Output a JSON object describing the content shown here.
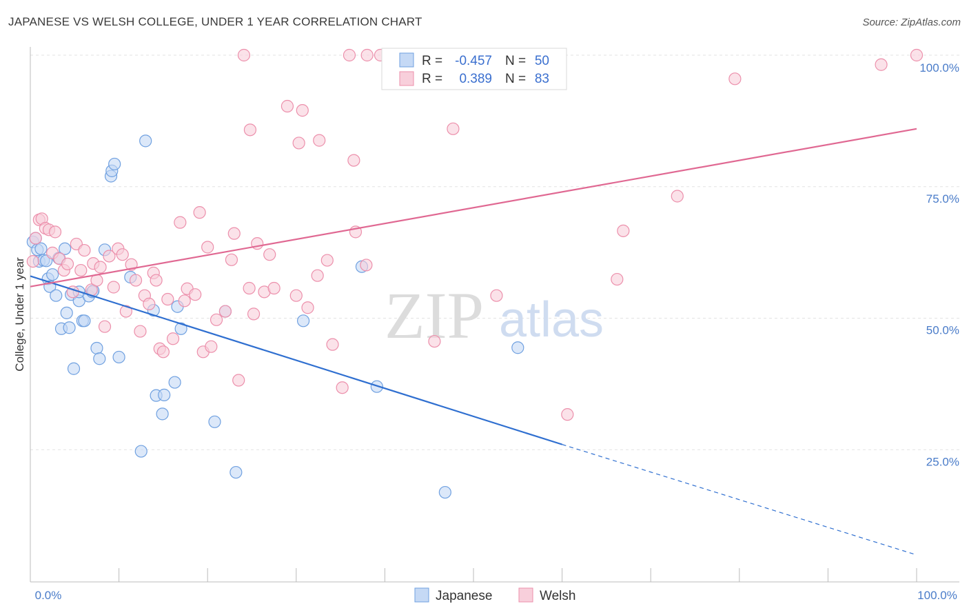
{
  "title": "JAPANESE VS WELSH COLLEGE, UNDER 1 YEAR CORRELATION CHART",
  "source": "Source: ZipAtlas.com",
  "watermark": {
    "zip": "ZIP",
    "atlas": "atlas"
  },
  "chart_data": {
    "type": "scatter",
    "ylabel": "College, Under 1 year",
    "xlim": [
      0,
      100
    ],
    "ylim": [
      0,
      105
    ],
    "x_tick_labels": [
      "0.0%",
      "100.0%"
    ],
    "y_tick_labels": [
      "25.0%",
      "50.0%",
      "75.0%",
      "100.0%"
    ],
    "y_ticks": [
      25,
      50,
      75,
      100
    ],
    "legend": {
      "r_label": "R =",
      "n_label": "N =",
      "entries": [
        {
          "name": "Japanese",
          "r": "-0.457",
          "n": "50"
        },
        {
          "name": "Welsh",
          "r": "0.389",
          "n": "83"
        }
      ]
    },
    "series": [
      {
        "name": "Japanese",
        "color": "#6fa0e0",
        "fill": "#c5d9f5",
        "line_color": "#2f6fd0",
        "trend": {
          "x0": 0,
          "y0": 58,
          "x1": 60,
          "y1": 26,
          "dash_x1": 100,
          "dash_y1": 5
        },
        "points": [
          [
            0.3,
            64.5
          ],
          [
            0.6,
            65.2
          ],
          [
            0.8,
            63.0
          ],
          [
            1.0,
            60.8
          ],
          [
            1.2,
            63.2
          ],
          [
            1.5,
            61.0
          ],
          [
            1.8,
            60.9
          ],
          [
            2.0,
            57.5
          ],
          [
            2.2,
            56.0
          ],
          [
            2.5,
            58.3
          ],
          [
            2.9,
            54.3
          ],
          [
            3.2,
            61.4
          ],
          [
            3.5,
            48.0
          ],
          [
            3.9,
            63.2
          ],
          [
            4.1,
            51.0
          ],
          [
            4.4,
            48.2
          ],
          [
            4.6,
            54.5
          ],
          [
            4.9,
            40.4
          ],
          [
            5.5,
            53.3
          ],
          [
            5.5,
            55.0
          ],
          [
            5.9,
            49.5
          ],
          [
            6.1,
            49.5
          ],
          [
            6.6,
            54.2
          ],
          [
            7.0,
            55.0
          ],
          [
            7.1,
            55.2
          ],
          [
            7.5,
            44.3
          ],
          [
            7.8,
            42.3
          ],
          [
            8.4,
            63.0
          ],
          [
            9.1,
            77.0
          ],
          [
            9.2,
            78.0
          ],
          [
            9.5,
            79.3
          ],
          [
            10.0,
            42.6
          ],
          [
            11.3,
            57.8
          ],
          [
            12.5,
            24.7
          ],
          [
            13.0,
            83.7
          ],
          [
            13.9,
            51.5
          ],
          [
            14.2,
            35.3
          ],
          [
            15.1,
            35.4
          ],
          [
            14.9,
            31.8
          ],
          [
            16.3,
            37.8
          ],
          [
            16.6,
            52.2
          ],
          [
            17.0,
            48.0
          ],
          [
            20.8,
            30.3
          ],
          [
            22.0,
            51.3
          ],
          [
            23.2,
            20.7
          ],
          [
            30.8,
            49.5
          ],
          [
            37.4,
            59.8
          ],
          [
            39.1,
            37.0
          ],
          [
            46.8,
            16.9
          ],
          [
            55.0,
            44.4
          ]
        ]
      },
      {
        "name": "Welsh",
        "color": "#ec8fab",
        "fill": "#f8cfdb",
        "line_color": "#e06892",
        "trend": {
          "x0": 0,
          "y0": 56,
          "x1": 100,
          "y1": 86
        },
        "points": [
          [
            0.3,
            60.8
          ],
          [
            0.6,
            65.2
          ],
          [
            1.0,
            68.7
          ],
          [
            1.3,
            68.9
          ],
          [
            1.7,
            67.1
          ],
          [
            2.1,
            66.8
          ],
          [
            2.5,
            62.4
          ],
          [
            2.8,
            66.4
          ],
          [
            3.3,
            61.3
          ],
          [
            3.8,
            59.1
          ],
          [
            4.2,
            60.3
          ],
          [
            4.8,
            55.0
          ],
          [
            5.2,
            64.1
          ],
          [
            5.7,
            59.1
          ],
          [
            6.1,
            62.9
          ],
          [
            6.9,
            55.4
          ],
          [
            7.1,
            60.4
          ],
          [
            7.5,
            57.2
          ],
          [
            7.9,
            59.7
          ],
          [
            8.4,
            48.4
          ],
          [
            8.9,
            61.8
          ],
          [
            9.4,
            55.9
          ],
          [
            9.9,
            63.2
          ],
          [
            10.4,
            62.1
          ],
          [
            10.8,
            51.3
          ],
          [
            11.4,
            60.2
          ],
          [
            11.9,
            57.2
          ],
          [
            12.4,
            47.5
          ],
          [
            12.9,
            54.3
          ],
          [
            13.4,
            52.7
          ],
          [
            13.9,
            58.6
          ],
          [
            14.2,
            57.2
          ],
          [
            14.6,
            44.2
          ],
          [
            15.0,
            43.6
          ],
          [
            15.5,
            53.6
          ],
          [
            16.1,
            46.1
          ],
          [
            16.9,
            68.2
          ],
          [
            17.4,
            53.3
          ],
          [
            17.7,
            55.6
          ],
          [
            18.6,
            54.5
          ],
          [
            19.1,
            70.1
          ],
          [
            19.5,
            43.6
          ],
          [
            20.0,
            63.5
          ],
          [
            20.4,
            44.6
          ],
          [
            21.0,
            49.7
          ],
          [
            22.0,
            51.3
          ],
          [
            22.7,
            61.1
          ],
          [
            23.0,
            66.1
          ],
          [
            23.5,
            38.2
          ],
          [
            24.7,
            55.7
          ],
          [
            24.8,
            85.8
          ],
          [
            25.2,
            50.8
          ],
          [
            25.6,
            64.2
          ],
          [
            26.4,
            55.0
          ],
          [
            27.0,
            62.1
          ],
          [
            27.5,
            55.7
          ],
          [
            29.0,
            90.3
          ],
          [
            30.0,
            54.3
          ],
          [
            30.3,
            83.3
          ],
          [
            30.7,
            89.5
          ],
          [
            31.3,
            52.0
          ],
          [
            32.4,
            58.1
          ],
          [
            32.6,
            83.8
          ],
          [
            33.5,
            61.0
          ],
          [
            34.1,
            45.0
          ],
          [
            35.2,
            36.8
          ],
          [
            36.5,
            80.0
          ],
          [
            36.7,
            66.4
          ],
          [
            37.9,
            60.1
          ],
          [
            39.5,
            100.0
          ],
          [
            45.6,
            45.6
          ],
          [
            47.7,
            86.0
          ],
          [
            52.6,
            54.3
          ],
          [
            60.6,
            31.7
          ],
          [
            66.2,
            57.4
          ],
          [
            66.9,
            66.6
          ],
          [
            73.0,
            73.2
          ],
          [
            79.5,
            95.5
          ],
          [
            96.0,
            98.2
          ],
          [
            100.0,
            100.0
          ],
          [
            24.1,
            100.0
          ],
          [
            36.0,
            100.0
          ],
          [
            38.0,
            100.0
          ]
        ]
      }
    ]
  }
}
